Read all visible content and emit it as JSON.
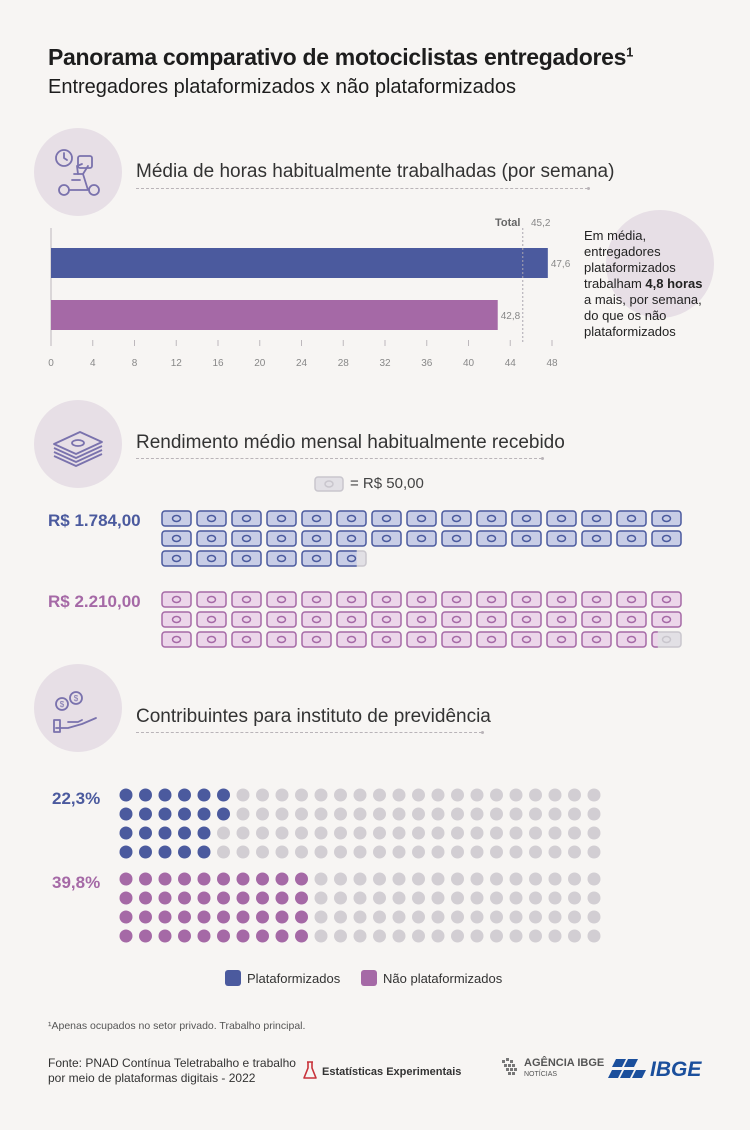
{
  "header": {
    "title": "Panorama comparativo de motociclistas entregadores",
    "title_sup": "1",
    "subtitle": "Entregadores plataformizados x não plataformizados"
  },
  "colors": {
    "plataformizados": "#4b5a9e",
    "nao_plataformizados": "#a569a6",
    "inactive": "#d2ced3",
    "note_circle": "#e7dfe6"
  },
  "hours_section": {
    "title": "Média de horas habitualmente trabalhadas (por semana)",
    "icon": "clock-motorcycle-icon",
    "total_label": "Total",
    "total_value": "45,2",
    "bar_labels": [
      "47,6",
      "42,8"
    ],
    "note": {
      "line1": "Em média,",
      "line2": "entregadores",
      "line3": "plataformizados",
      "line4_pre": "trabalham ",
      "line4_bold": "4,8 horas",
      "line5": "a mais, por semana,",
      "line6": "do que os não",
      "line7": "plataformizados"
    }
  },
  "income_section": {
    "title": "Rendimento médio mensal habitualmente recebido",
    "icon": "money-stack-icon",
    "unit_legend": "= R$ 50,00",
    "plat_value": "R$ 1.784,00",
    "nao_plat_value": "R$ 2.210,00"
  },
  "pension_section": {
    "title": "Contribuintes para instituto de previdência",
    "icon": "hand-coins-icon",
    "plat_value": "22,3%",
    "nao_plat_value": "39,8%"
  },
  "legend": {
    "plat": "Plataformizados",
    "nao_plat": "Não plataformizados"
  },
  "footer": {
    "footnote": "¹Apenas ocupados no setor privado. Trabalho principal.",
    "source_line1": "Fonte: PNAD Contínua Teletrabalho e trabalho",
    "source_line2": "por meio de plataformas digitais - 2022",
    "estatisticas": "Estatísticas Experimentais",
    "agencia": "AGÊNCIA IBGE",
    "noticias": "NOTÍCIAS",
    "ibge": "IBGE"
  },
  "chart_data": [
    {
      "type": "bar",
      "orientation": "horizontal",
      "title": "Média de horas habitualmente trabalhadas (por semana)",
      "series": [
        {
          "name": "Plataformizados",
          "values": [
            47.6
          ]
        },
        {
          "name": "Não plataformizados",
          "values": [
            42.8
          ]
        }
      ],
      "reference_line": {
        "label": "Total",
        "value": 45.2
      },
      "xlim": [
        0,
        48
      ],
      "xticks": [
        0,
        4,
        8,
        12,
        16,
        20,
        24,
        28,
        32,
        36,
        40,
        44,
        48
      ]
    },
    {
      "type": "pictogram",
      "title": "Rendimento médio mensal habitualmente recebido",
      "unit_value": 50,
      "series": [
        {
          "name": "Plataformizados",
          "value": 1784
        },
        {
          "name": "Não plataformizados",
          "value": 2210
        }
      ]
    },
    {
      "type": "dot-matrix",
      "title": "Contribuintes para instituto de previdência",
      "total_dots": 100,
      "series": [
        {
          "name": "Plataformizados",
          "value": 22.3
        },
        {
          "name": "Não plataformizados",
          "value": 39.8
        }
      ]
    }
  ]
}
